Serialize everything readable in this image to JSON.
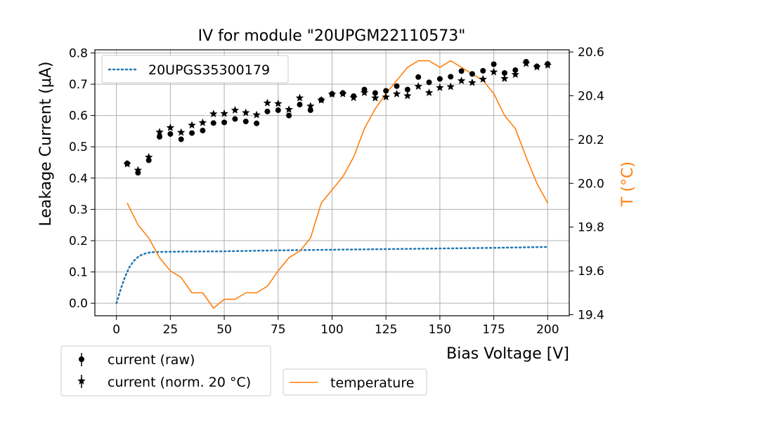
{
  "chart_data": {
    "type": "scatter",
    "title": "IV for module \"20UPGM22110573\"",
    "xlabel": "Bias Voltage [V]",
    "ylabel": "Leakage Current (μA)",
    "y2label": "T (°C)",
    "xlim": [
      -10,
      210
    ],
    "ylim": [
      -0.04,
      0.81
    ],
    "y2lim": [
      19.395,
      20.61
    ],
    "x_ticks": [
      0,
      25,
      50,
      75,
      100,
      125,
      150,
      175,
      200
    ],
    "y_ticks": [
      0.0,
      0.1,
      0.2,
      0.3,
      0.4,
      0.5,
      0.6,
      0.7,
      0.8
    ],
    "y2_ticks": [
      19.4,
      19.6,
      19.8,
      20.0,
      20.2,
      20.4,
      20.6
    ],
    "grid": true,
    "colors": {
      "reference": "#1f77b4",
      "temperature": "#ff7f0e",
      "points": "#000000"
    },
    "legends": {
      "reference": [
        "20UPGS35300179"
      ],
      "current": [
        "current (raw)",
        "current (norm. 20 °C)"
      ],
      "temperature": [
        "temperature"
      ]
    },
    "series": [
      {
        "name": "current (raw)",
        "marker": "circle",
        "axis": "left",
        "x": [
          5,
          10,
          15,
          20,
          25,
          30,
          35,
          40,
          45,
          50,
          55,
          60,
          65,
          70,
          75,
          80,
          85,
          90,
          95,
          100,
          105,
          110,
          115,
          120,
          125,
          130,
          135,
          140,
          145,
          150,
          155,
          160,
          165,
          170,
          175,
          180,
          185,
          190,
          195,
          200
        ],
        "values": [
          0.447,
          0.417,
          0.457,
          0.532,
          0.541,
          0.524,
          0.544,
          0.552,
          0.576,
          0.578,
          0.589,
          0.581,
          0.575,
          0.613,
          0.617,
          0.6,
          0.635,
          0.617,
          0.65,
          0.669,
          0.672,
          0.662,
          0.683,
          0.672,
          0.679,
          0.694,
          0.683,
          0.723,
          0.706,
          0.717,
          0.724,
          0.742,
          0.733,
          0.743,
          0.764,
          0.736,
          0.745,
          0.772,
          0.757,
          0.765
        ]
      },
      {
        "name": "current (norm. 20 °C)",
        "marker": "star",
        "axis": "left",
        "x": [
          5,
          10,
          15,
          20,
          25,
          30,
          35,
          40,
          45,
          50,
          55,
          60,
          65,
          70,
          75,
          80,
          85,
          90,
          95,
          100,
          105,
          110,
          115,
          120,
          125,
          130,
          135,
          140,
          145,
          150,
          155,
          160,
          165,
          170,
          175,
          180,
          185,
          190,
          195,
          200
        ],
        "values": [
          0.445,
          0.425,
          0.467,
          0.547,
          0.561,
          0.546,
          0.569,
          0.577,
          0.605,
          0.606,
          0.617,
          0.609,
          0.602,
          0.64,
          0.638,
          0.619,
          0.656,
          0.63,
          0.649,
          0.668,
          0.669,
          0.657,
          0.673,
          0.656,
          0.659,
          0.669,
          0.663,
          0.693,
          0.673,
          0.689,
          0.692,
          0.711,
          0.705,
          0.716,
          0.739,
          0.718,
          0.731,
          0.766,
          0.755,
          0.761
        ]
      },
      {
        "name": "20UPGS35300179",
        "style": "dotted",
        "axis": "left",
        "x": [
          0,
          2,
          4,
          6,
          8,
          10,
          12,
          14,
          16,
          20,
          30,
          50,
          75,
          100,
          125,
          150,
          175,
          200
        ],
        "values": [
          0.0,
          0.045,
          0.085,
          0.115,
          0.135,
          0.148,
          0.156,
          0.16,
          0.163,
          0.164,
          0.165,
          0.166,
          0.169,
          0.171,
          0.173,
          0.175,
          0.177,
          0.18
        ]
      },
      {
        "name": "temperature",
        "style": "line",
        "axis": "right",
        "x": [
          5,
          10,
          15,
          20,
          25,
          30,
          35,
          40,
          45,
          50,
          55,
          60,
          65,
          70,
          75,
          80,
          85,
          90,
          95,
          100,
          105,
          110,
          115,
          120,
          125,
          130,
          135,
          140,
          145,
          150,
          155,
          160,
          165,
          170,
          175,
          180,
          185,
          190,
          195,
          200
        ],
        "values": [
          19.91,
          19.81,
          19.75,
          19.66,
          19.6,
          19.57,
          19.5,
          19.5,
          19.43,
          19.47,
          19.47,
          19.5,
          19.5,
          19.53,
          19.6,
          19.66,
          19.69,
          19.75,
          19.91,
          19.97,
          20.03,
          20.12,
          20.25,
          20.34,
          20.41,
          20.47,
          20.53,
          20.56,
          20.56,
          20.53,
          20.56,
          20.53,
          20.5,
          20.47,
          20.41,
          20.31,
          20.25,
          20.12,
          20.0,
          19.91
        ]
      }
    ]
  }
}
